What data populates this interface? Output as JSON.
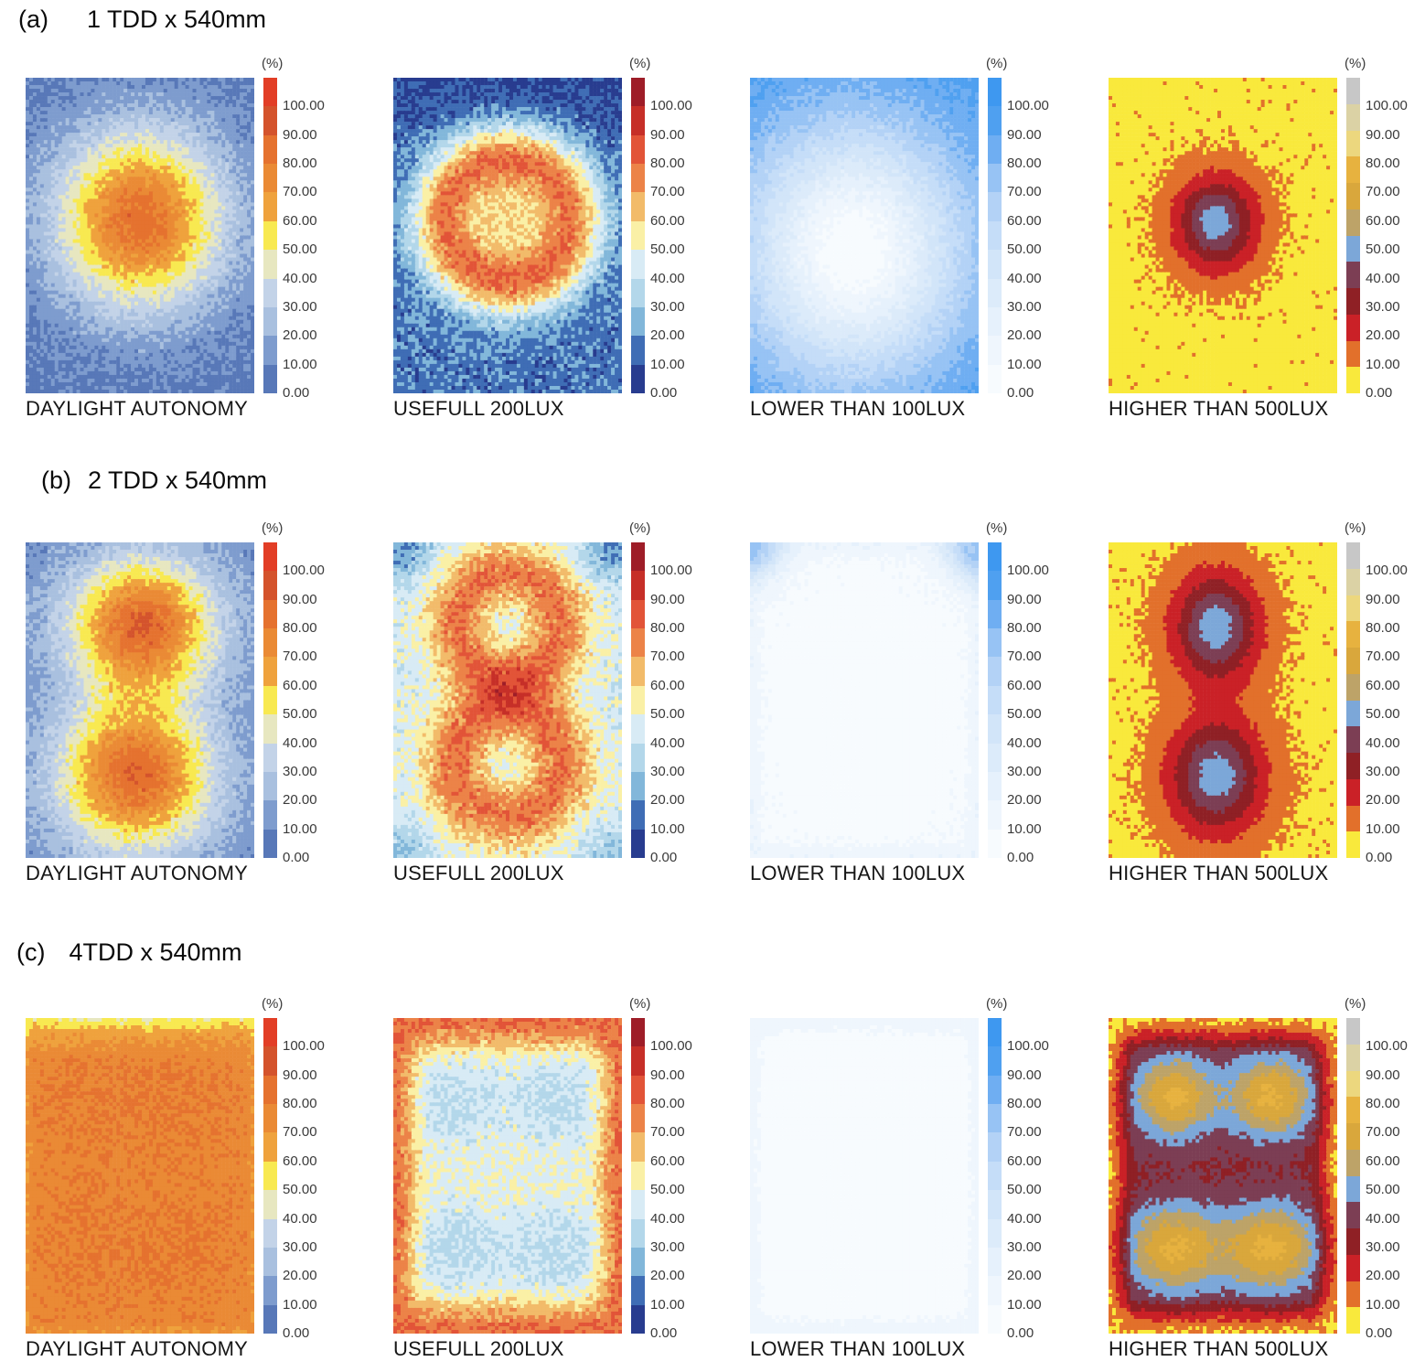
{
  "chart_data": {
    "type": "heatmap",
    "figure_kind": "daylight simulation falsecolor grid maps, 3 rows x 4 panels",
    "unit_label": "(%)",
    "legend_ticks": [
      "100.00",
      "90.00",
      "80.00",
      "70.00",
      "60.00",
      "50.00",
      "40.00",
      "30.00",
      "20.00",
      "10.00",
      "0.00"
    ],
    "value_range": [
      0,
      100
    ],
    "grid": {
      "cols": 63,
      "rows": 86
    },
    "colormaps": {
      "da": {
        "legend_colors_top_to_bottom": [
          "#e23e26",
          "#d4532c",
          "#e5722f",
          "#ea8a35",
          "#efa23d",
          "#f8e951",
          "#e7e7c0",
          "#c3d3e8",
          "#a9c0df",
          "#7e9cce",
          "#5878b8"
        ],
        "thresholds": [
          10,
          20,
          30,
          40,
          50,
          60,
          70,
          80,
          90,
          100
        ]
      },
      "uf": {
        "legend_colors_top_to_bottom": [
          "#9e1d28",
          "#c62f28",
          "#e25438",
          "#ec8348",
          "#f2bb6a",
          "#faf0a6",
          "#d8ebf5",
          "#b3d7ea",
          "#82b7da",
          "#3f6db5",
          "#283c8f"
        ],
        "thresholds": [
          10,
          20,
          30,
          40,
          50,
          60,
          70,
          80,
          90,
          100
        ]
      },
      "lt": {
        "legend_colors_top_to_bottom": [
          "#3e98f0",
          "#4fa0f0",
          "#6faef2",
          "#97c3f4",
          "#b3d2f6",
          "#c5ddf8",
          "#d2e5f9",
          "#dcebfa",
          "#e6f1fc",
          "#eff6fd",
          "#f7fbfe"
        ],
        "thresholds": [
          10,
          20,
          30,
          40,
          50,
          60,
          70,
          80,
          90,
          100
        ]
      },
      "hi": {
        "legend_colors_top_to_bottom": [
          "#c7c7c7",
          "#dbd2a5",
          "#ecd77e",
          "#e7b23f",
          "#d9a73c",
          "#bda368",
          "#7ca7d8",
          "#7c3e54",
          "#8f2025",
          "#ca2127",
          "#e2702b",
          "#f9e93c"
        ],
        "thresholds": [
          1.8,
          10,
          20,
          30,
          40,
          50,
          60,
          70,
          80,
          90,
          100
        ]
      }
    },
    "rows": [
      {
        "index_label": "(a)",
        "title": "1 TDD x 540mm",
        "panels": [
          {
            "caption": "DAYLIGHT AUTONOMY",
            "colormap": "da",
            "field": {
              "base": 6,
              "noise": 6,
              "seed": 101,
              "gauss": [
                {
                  "x": 0.5,
                  "y": 0.45,
                  "sx": 0.26,
                  "sy": 0.2,
                  "a": 80
                }
              ]
            }
          },
          {
            "caption": "USEFULL 200LUX",
            "colormap": "uf",
            "field": {
              "base": 16,
              "noise": 8,
              "seed": 202,
              "gauss": [
                {
                  "x": 0.5,
                  "y": 0.45,
                  "sx": 0.1,
                  "sy": 0.085,
                  "a": 38
                },
                {
                  "x": 0.5,
                  "y": -0.1,
                  "sx": 0.8,
                  "sy": 0.18,
                  "a": -12
                }
              ],
              "rings": [
                {
                  "x": 0.5,
                  "y": 0.45,
                  "r": 0.27,
                  "w": 0.11,
                  "a": 62
                }
              ]
            }
          },
          {
            "caption": "LOWER THAN 100LUX",
            "colormap": "lt",
            "field": {
              "base": 98,
              "noise": 5,
              "seed": 303,
              "gauss": [
                {
                  "x": 0.45,
                  "y": 0.55,
                  "sx": 0.34,
                  "sy": 0.28,
                  "a": -97
                }
              ]
            }
          },
          {
            "caption": "HIGHER THAN 500LUX",
            "colormap": "hi",
            "field": {
              "base": 0.4,
              "noise": 1.5,
              "seed": 404,
              "gauss": [
                {
                  "x": 0.47,
                  "y": 0.46,
                  "sx": 0.115,
                  "sy": 0.095,
                  "a": 46
                }
              ]
            }
          }
        ]
      },
      {
        "index_label": "(b)",
        "title": "2 TDD x 540mm",
        "panels": [
          {
            "caption": "DAYLIGHT AUTONOMY",
            "colormap": "da",
            "field": {
              "base": 10,
              "noise": 6,
              "seed": 505,
              "gauss": [
                {
                  "x": 0.51,
                  "y": 0.26,
                  "sx": 0.23,
                  "sy": 0.15,
                  "a": 78
                },
                {
                  "x": 0.48,
                  "y": 0.74,
                  "sx": 0.24,
                  "sy": 0.17,
                  "a": 78
                }
              ]
            }
          },
          {
            "caption": "USEFULL 200LUX",
            "colormap": "uf",
            "field": {
              "base": 45,
              "noise": 8,
              "seed": 606,
              "gauss": [
                {
                  "x": 0.03,
                  "y": 0.02,
                  "sx": 0.1,
                  "sy": 0.07,
                  "a": -26
                },
                {
                  "x": 0.97,
                  "y": 0.02,
                  "sx": 0.1,
                  "sy": 0.07,
                  "a": -26
                },
                {
                  "x": 0.03,
                  "y": 0.99,
                  "sx": 0.09,
                  "sy": 0.06,
                  "a": -16
                },
                {
                  "x": 0.97,
                  "y": 0.99,
                  "sx": 0.09,
                  "sy": 0.06,
                  "a": -16
                }
              ],
              "rings": [
                {
                  "x": 0.5,
                  "y": 0.26,
                  "r": 0.22,
                  "w": 0.1,
                  "a": 33
                },
                {
                  "x": 0.5,
                  "y": 0.7,
                  "r": 0.23,
                  "w": 0.105,
                  "a": 33
                }
              ]
            }
          },
          {
            "caption": "LOWER THAN 100LUX",
            "colormap": "lt",
            "field": {
              "base": 10,
              "noise": 4,
              "seed": 707,
              "border": {
                "a": 10,
                "m": 0.08
              },
              "gauss": [
                {
                  "x": 0.02,
                  "y": 0.02,
                  "sx": 0.09,
                  "sy": 0.07,
                  "a": 55
                },
                {
                  "x": 0.98,
                  "y": 0.03,
                  "sx": 0.09,
                  "sy": 0.07,
                  "a": 55
                },
                {
                  "x": 0.5,
                  "y": 0.55,
                  "sx": 0.34,
                  "sy": 0.34,
                  "a": -8
                }
              ]
            }
          },
          {
            "caption": "HIGHER THAN 500LUX",
            "colormap": "hi",
            "field": {
              "base": 0.4,
              "noise": 1.5,
              "seed": 808,
              "gauss": [
                {
                  "x": 0.47,
                  "y": 0.27,
                  "sx": 0.125,
                  "sy": 0.115,
                  "a": 46
                },
                {
                  "x": 0.47,
                  "y": 0.74,
                  "sx": 0.135,
                  "sy": 0.12,
                  "a": 46
                }
              ]
            }
          }
        ]
      },
      {
        "index_label": "(c)",
        "title": "4TDD x 540mm",
        "panels": [
          {
            "caption": "DAYLIGHT AUTONOMY",
            "colormap": "da",
            "field": {
              "base": 76,
              "noise": 5,
              "seed": 909,
              "border": {
                "a": -6,
                "m": 0.04
              },
              "gauss": [
                {
                  "x": 0.5,
                  "y": -0.03,
                  "sx": 0.7,
                  "sy": 0.07,
                  "a": -24
                },
                {
                  "x": 0.3,
                  "y": 0.25,
                  "sx": 0.18,
                  "sy": 0.13,
                  "a": 4
                },
                {
                  "x": 0.7,
                  "y": 0.25,
                  "sx": 0.18,
                  "sy": 0.13,
                  "a": 4
                },
                {
                  "x": 0.3,
                  "y": 0.72,
                  "sx": 0.18,
                  "sy": 0.13,
                  "a": 4
                },
                {
                  "x": 0.7,
                  "y": 0.72,
                  "sx": 0.18,
                  "sy": 0.13,
                  "a": 4
                }
              ]
            }
          },
          {
            "caption": "USEFULL 200LUX",
            "colormap": "uf",
            "field": {
              "base": 50,
              "noise": 7,
              "seed": 1010,
              "border": {
                "a": 30,
                "m": 0.17
              },
              "gauss": [
                {
                  "x": 0.285,
                  "y": 0.26,
                  "sx": 0.13,
                  "sy": 0.1,
                  "a": -13
                },
                {
                  "x": 0.715,
                  "y": 0.26,
                  "sx": 0.13,
                  "sy": 0.1,
                  "a": -13
                },
                {
                  "x": 0.285,
                  "y": 0.73,
                  "sx": 0.14,
                  "sy": 0.1,
                  "a": -13
                },
                {
                  "x": 0.715,
                  "y": 0.73,
                  "sx": 0.14,
                  "sy": 0.1,
                  "a": -13
                }
              ]
            }
          },
          {
            "caption": "LOWER THAN 100LUX",
            "colormap": "lt",
            "field": {
              "base": 9,
              "noise": 2,
              "seed": 1111,
              "border": {
                "a": 8,
                "m": 0.1
              },
              "gauss": [
                {
                  "x": 0.5,
                  "y": 0.5,
                  "sx": 0.5,
                  "sy": 0.45,
                  "a": -7
                }
              ]
            }
          },
          {
            "caption": "HIGHER THAN 500LUX",
            "colormap": "hi",
            "field": {
              "base": 0,
              "noise": 3,
              "seed": 1212,
              "plateau": {
                "a": 27,
                "m": 0.13
              },
              "gauss": [
                {
                  "x": 0.285,
                  "y": 0.25,
                  "sx": 0.13,
                  "sy": 0.095,
                  "a": 45
                },
                {
                  "x": 0.715,
                  "y": 0.25,
                  "sx": 0.13,
                  "sy": 0.095,
                  "a": 45
                },
                {
                  "x": 0.285,
                  "y": 0.73,
                  "sx": 0.15,
                  "sy": 0.1,
                  "a": 45
                },
                {
                  "x": 0.715,
                  "y": 0.73,
                  "sx": 0.15,
                  "sy": 0.1,
                  "a": 45
                }
              ]
            }
          }
        ]
      }
    ]
  }
}
